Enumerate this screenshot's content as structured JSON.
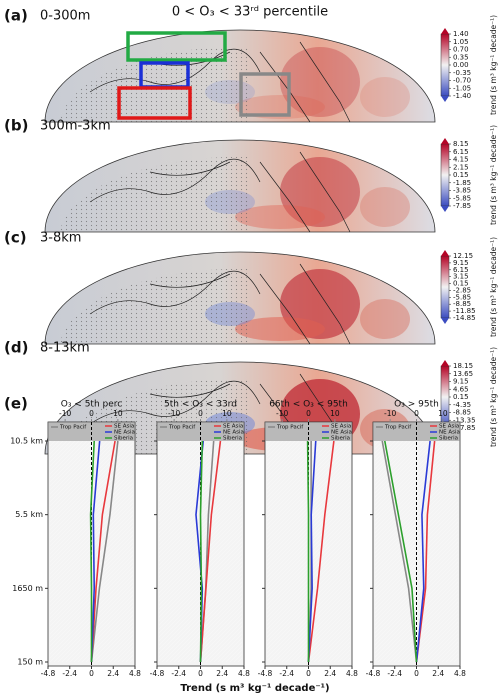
{
  "title": "0 < O₃ < 33ʳᵈ percentile",
  "colorbar_label": "trend (s m³ kg⁻¹ decade⁻¹)",
  "maps": [
    {
      "label": "(a)",
      "layer": "0-300m",
      "clim": [
        -1.4,
        1.4
      ],
      "ticks": [
        {
          "value": 1.4,
          "label": "1.40"
        },
        1.05,
        {
          "value": 0.7,
          "label": "0.70"
        },
        0.35,
        {
          "value": 0,
          "label": "0.00"
        },
        -0.35,
        {
          "value": -0.7,
          "label": "-0.70"
        },
        -1.05,
        {
          "value": -1.4,
          "label": "-1.40"
        }
      ]
    },
    {
      "label": "(b)",
      "layer": "300m-3km",
      "clim": [
        -7.85,
        8.15
      ],
      "ticks": [
        8.15,
        6.15,
        4.15,
        2.15,
        0.15,
        -1.85,
        -3.85,
        -5.85,
        -7.85
      ]
    },
    {
      "label": "(c)",
      "layer": "3-8km",
      "clim": [
        -14.85,
        12.15
      ],
      "ticks": [
        12.15,
        9.15,
        6.15,
        3.15,
        0.15,
        -2.85,
        -5.85,
        -8.85,
        -11.85,
        -14.85
      ]
    },
    {
      "label": "(d)",
      "layer": "8-13km",
      "clim": [
        -17.85,
        18.15
      ],
      "ticks": [
        18.15,
        13.65,
        9.15,
        4.65,
        0.15,
        -4.35,
        -8.85,
        -13.35,
        -17.85
      ]
    }
  ],
  "profiles": {
    "label": "(e)",
    "xlabel": "Trend (s m³ kg⁻¹ decade⁻¹)"
  },
  "chart_data": [
    {
      "type": "line",
      "title": "O₃ < 5th perc",
      "categories": [
        "150 m",
        "1650 m",
        "5.5 km",
        "10.5 km"
      ],
      "xlim": [
        -4.8,
        4.8
      ],
      "xticks": [
        -4.8,
        -2.4,
        0,
        2.4,
        4.8
      ],
      "x2lim": [
        -16.5,
        16.5
      ],
      "x2ticks": [
        -10,
        0,
        10
      ],
      "series": [
        {
          "name": "Trop Pacif",
          "color": "#888888",
          "axis": "x2",
          "values": [
            0,
            3,
            7,
            10
          ]
        },
        {
          "name": "SE Asia",
          "color": "#e8383d",
          "values": [
            0,
            0.5,
            1.2,
            2.6
          ]
        },
        {
          "name": "NE Asia",
          "color": "#2a3ad6",
          "values": [
            0,
            0.3,
            0.2,
            0.9
          ]
        },
        {
          "name": "Siberia",
          "color": "#2ca02c",
          "values": [
            0,
            0,
            -0.1,
            0.3
          ]
        }
      ]
    },
    {
      "type": "line",
      "title": "5th < O₃ < 33rd",
      "categories": [
        "150 m",
        "1650 m",
        "5.5 km",
        "10.5 km"
      ],
      "xlim": [
        -4.8,
        4.8
      ],
      "xticks": [
        -4.8,
        -2.4,
        0,
        2.4,
        4.8
      ],
      "x2lim": [
        -16.5,
        16.5
      ],
      "x2ticks": [
        -10,
        0,
        10
      ],
      "series": [
        {
          "name": "Trop Pacif",
          "color": "#888888",
          "axis": "x2",
          "values": [
            0,
            2,
            3,
            5
          ]
        },
        {
          "name": "SE Asia",
          "color": "#e8383d",
          "values": [
            0,
            0.6,
            1.2,
            2.2
          ]
        },
        {
          "name": "NE Asia",
          "color": "#2a3ad6",
          "values": [
            0,
            0.2,
            -0.5,
            0.3
          ]
        },
        {
          "name": "Siberia",
          "color": "#2ca02c",
          "values": [
            0,
            0.1,
            0,
            0.2
          ]
        }
      ]
    },
    {
      "type": "line",
      "title": "66th < O₃ < 95th",
      "categories": [
        "150 m",
        "1650 m",
        "5.5 km",
        "10.5 km"
      ],
      "xlim": [
        -4.8,
        4.8
      ],
      "xticks": [
        -4.8,
        -2.4,
        0,
        2.4,
        4.8
      ],
      "x2lim": [
        -16.5,
        16.5
      ],
      "x2ticks": [
        -10,
        0,
        10
      ],
      "series": [
        {
          "name": "Trop Pacif",
          "color": "#888888",
          "axis": "x2",
          "values": [
            0,
            1,
            1,
            1
          ]
        },
        {
          "name": "SE Asia",
          "color": "#e8383d",
          "values": [
            0,
            1,
            1.8,
            2.8
          ]
        },
        {
          "name": "NE Asia",
          "color": "#2a3ad6",
          "values": [
            0,
            0.4,
            0.3,
            0.8
          ]
        },
        {
          "name": "Siberia",
          "color": "#2ca02c",
          "values": [
            0,
            0,
            0,
            -0.1
          ]
        }
      ]
    },
    {
      "type": "line",
      "title": "O₃ > 95th",
      "categories": [
        "150 m",
        "1650 m",
        "5.5 km",
        "10.5 km"
      ],
      "xlim": [
        -4.8,
        4.8
      ],
      "xticks": [
        -4.8,
        -2.4,
        0,
        2.4,
        4.8
      ],
      "x2lim": [
        -16.5,
        16.5
      ],
      "x2ticks": [
        -10,
        0,
        10
      ],
      "series": [
        {
          "name": "Trop Pacif",
          "color": "#888888",
          "axis": "x2",
          "values": [
            0,
            -3,
            -8,
            -13
          ]
        },
        {
          "name": "SE Asia",
          "color": "#e8383d",
          "values": [
            0,
            1,
            1.2,
            2
          ]
        },
        {
          "name": "NE Asia",
          "color": "#2a3ad6",
          "values": [
            0,
            0.8,
            0.6,
            1.5
          ]
        },
        {
          "name": "Siberia",
          "color": "#2ca02c",
          "values": [
            0,
            -0.5,
            -2,
            -3.5
          ]
        }
      ]
    }
  ]
}
